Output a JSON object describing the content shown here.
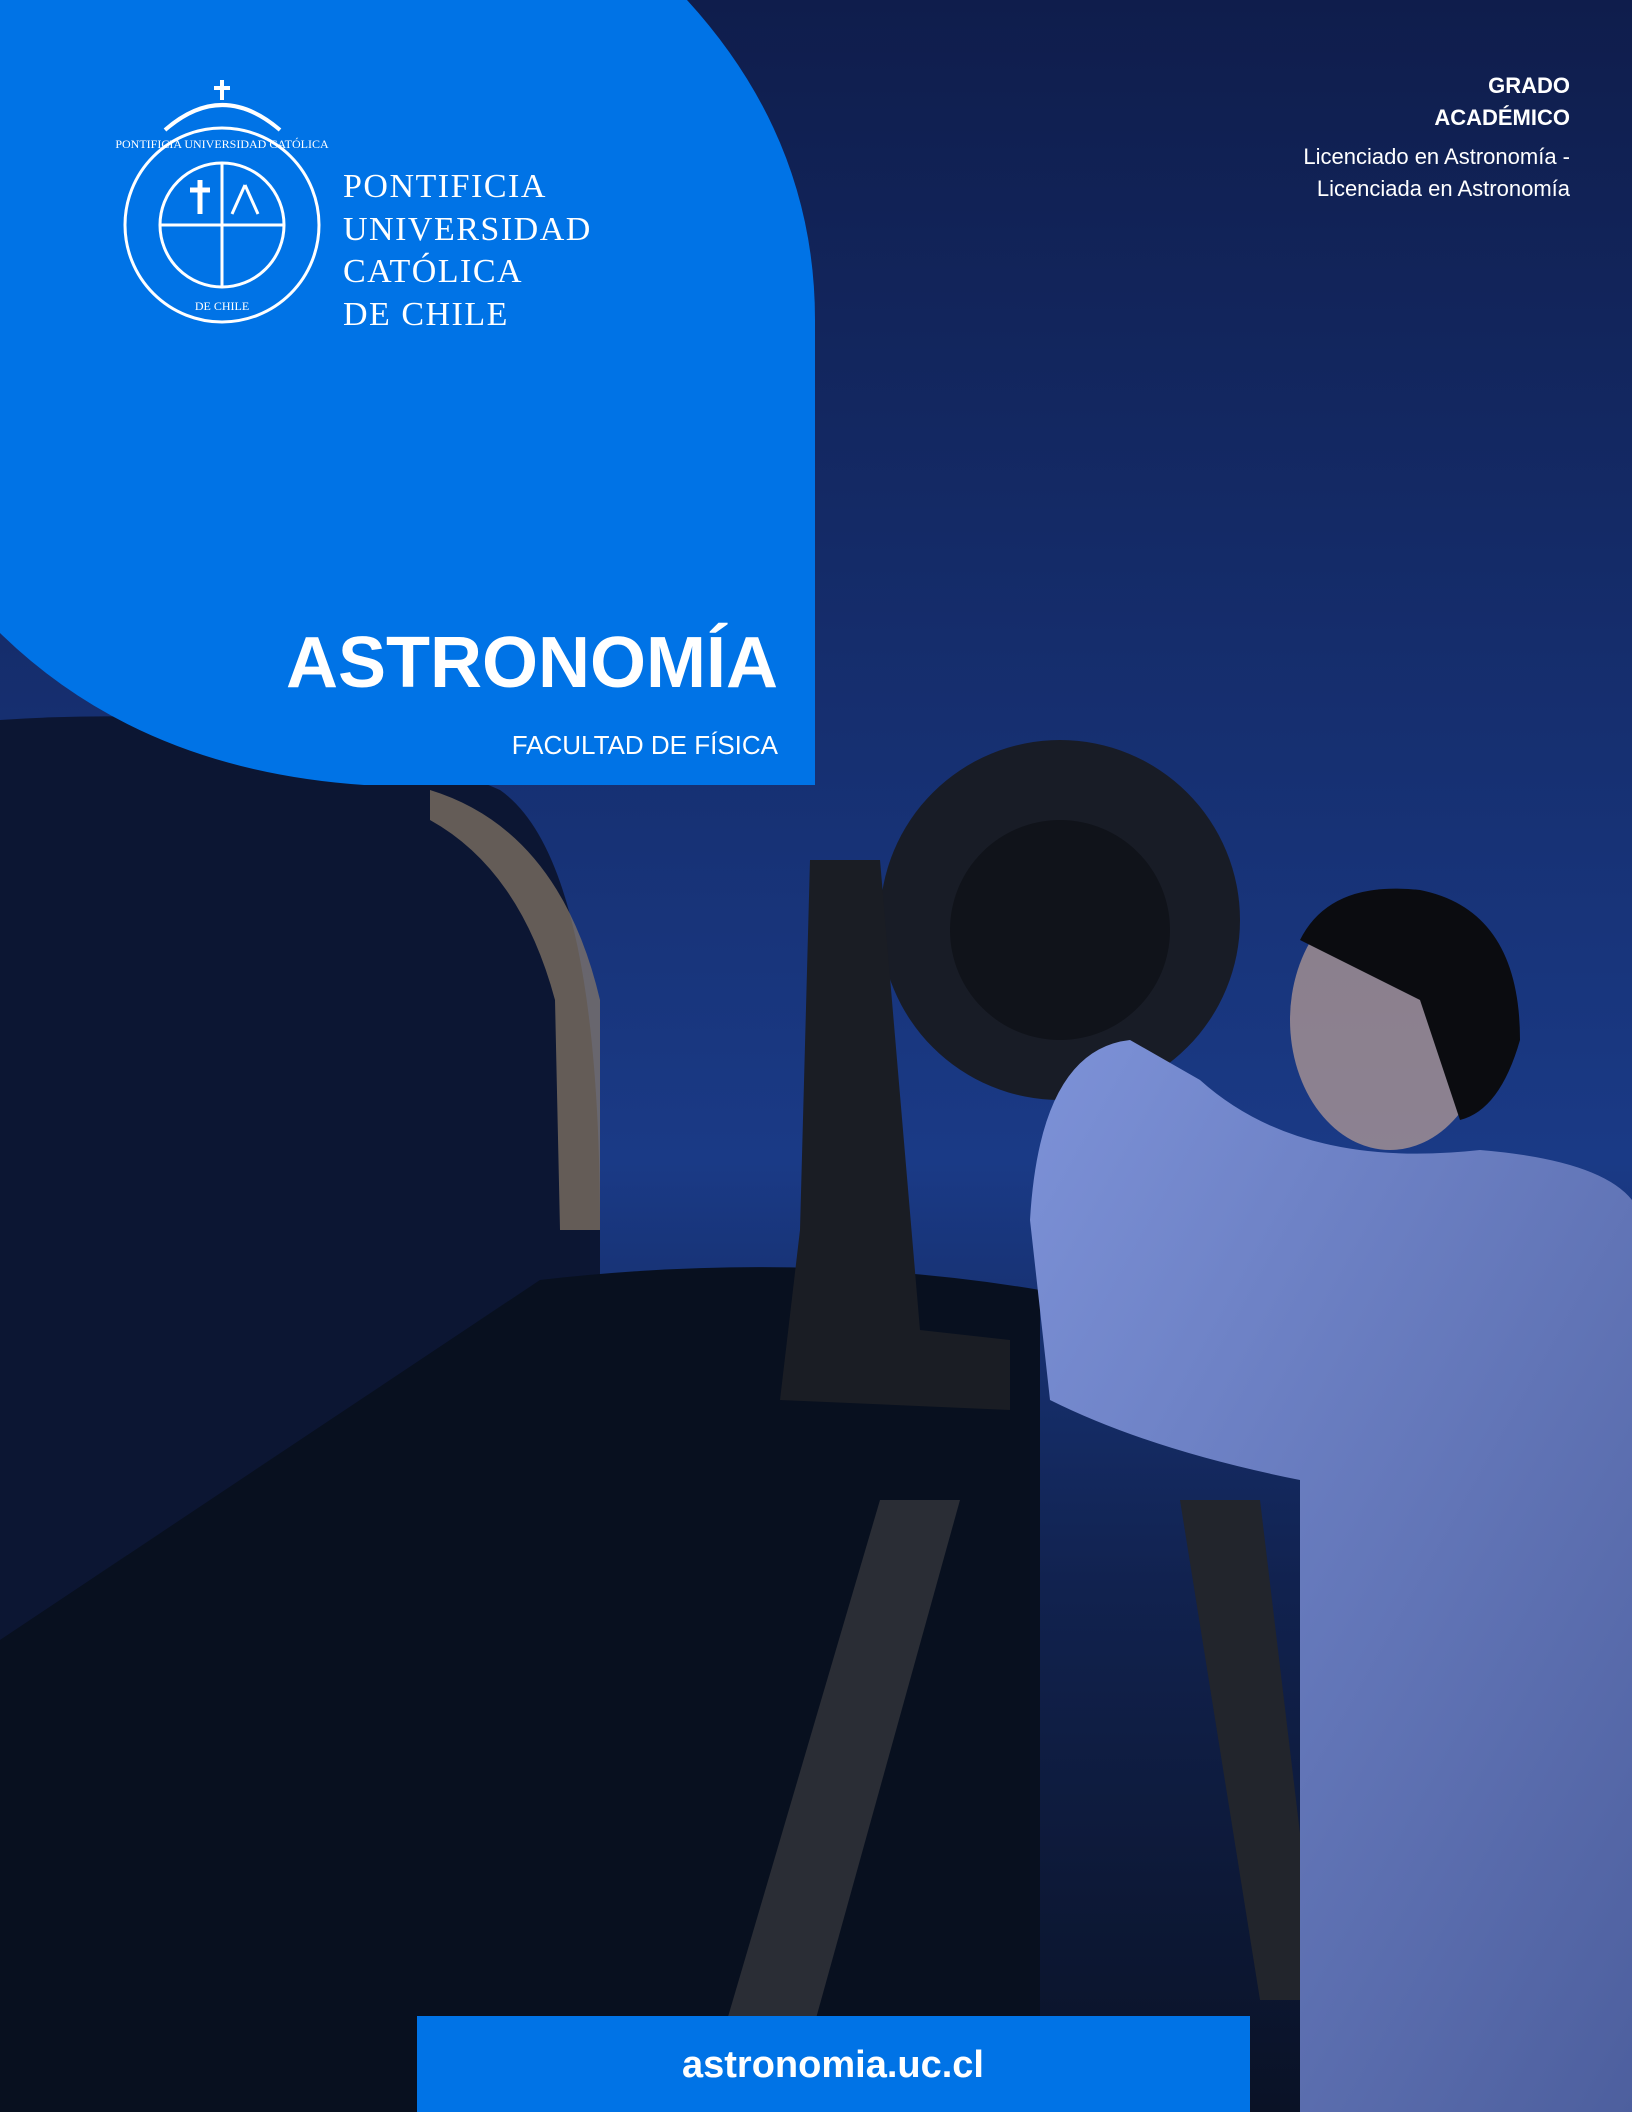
{
  "university": {
    "lines": [
      "PONTIFICIA",
      "UNIVERSIDAD",
      "CATÓLICA",
      "DE CHILE"
    ],
    "seal_text": [
      "PONTIFICIA UNIVERSIDAD CATÓLICA",
      "DE CHILE"
    ]
  },
  "degree": {
    "label": [
      "GRADO",
      "ACADÉMICO"
    ],
    "names": [
      "Licenciado en Astronomía -",
      "Licenciada en Astronomía"
    ]
  },
  "program": {
    "title": "ASTRONOMÍA",
    "faculty": "FACULTAD DE FÍSICA"
  },
  "footer": {
    "url": "astronomia.uc.cl"
  }
}
